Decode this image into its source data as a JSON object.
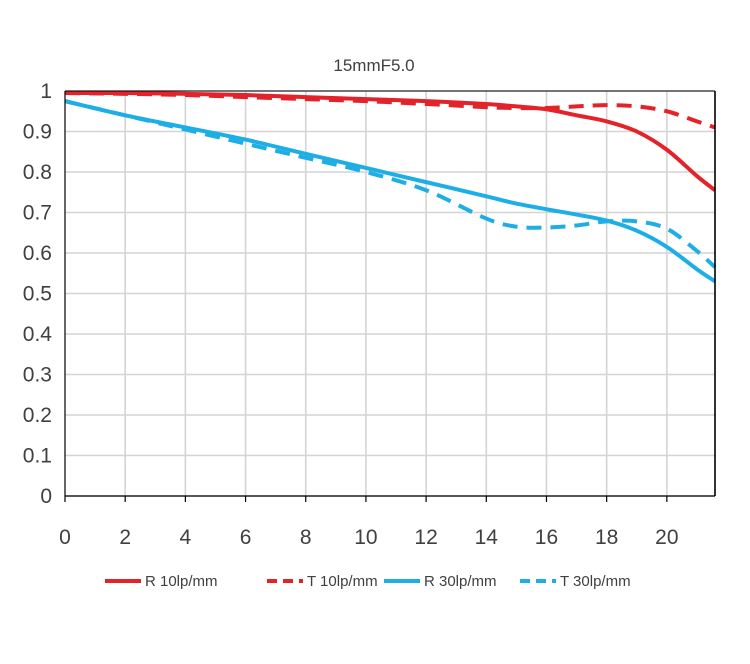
{
  "chart_data": {
    "type": "line",
    "title": "15mmF5.0",
    "xlabel": "",
    "ylabel": "",
    "xlim": [
      0,
      21.6
    ],
    "ylim": [
      0,
      1
    ],
    "x_ticks": [
      "0",
      "2",
      "4",
      "6",
      "8",
      "10",
      "12",
      "14",
      "16",
      "18",
      "20"
    ],
    "y_ticks": [
      "0",
      "0.1",
      "0.2",
      "0.3",
      "0.4",
      "0.5",
      "0.6",
      "0.7",
      "0.8",
      "0.9",
      "1"
    ],
    "grid": true,
    "legend_position": "bottom",
    "colors": {
      "red": "#e4222a",
      "blue": "#1eaee6",
      "grid": "#d4d4d4",
      "axis": "#000000"
    },
    "series": [
      {
        "name": "R 10lp/mm",
        "color": "#e4222a",
        "dash": false,
        "x": [
          0,
          2,
          4,
          6,
          8,
          10,
          12,
          14,
          15,
          16,
          17,
          18,
          19,
          20,
          21,
          21.6
        ],
        "y": [
          0.995,
          0.995,
          0.993,
          0.99,
          0.985,
          0.98,
          0.975,
          0.968,
          0.962,
          0.955,
          0.94,
          0.925,
          0.9,
          0.855,
          0.79,
          0.755
        ]
      },
      {
        "name": "T 10lp/mm",
        "color": "#e4222a",
        "dash": true,
        "x": [
          0,
          2,
          4,
          6,
          8,
          10,
          12,
          14,
          15,
          16,
          17,
          18,
          19,
          20,
          21,
          21.6
        ],
        "y": [
          0.995,
          0.993,
          0.99,
          0.985,
          0.98,
          0.975,
          0.968,
          0.96,
          0.958,
          0.958,
          0.962,
          0.965,
          0.962,
          0.95,
          0.925,
          0.91
        ]
      },
      {
        "name": "R 30lp/mm",
        "color": "#1eaee6",
        "dash": false,
        "x": [
          0,
          2,
          4,
          6,
          8,
          10,
          12,
          14,
          15,
          16,
          17,
          18,
          19,
          20,
          21,
          21.6
        ],
        "y": [
          0.975,
          0.94,
          0.91,
          0.88,
          0.845,
          0.81,
          0.775,
          0.74,
          0.722,
          0.708,
          0.695,
          0.68,
          0.655,
          0.615,
          0.56,
          0.53
        ]
      },
      {
        "name": "T 30lp/mm",
        "color": "#1eaee6",
        "dash": true,
        "x": [
          0,
          2,
          4,
          6,
          8,
          10,
          12,
          14,
          15,
          16,
          17,
          18,
          19,
          20,
          21,
          21.6
        ],
        "y": [
          0.975,
          0.94,
          0.905,
          0.87,
          0.835,
          0.8,
          0.755,
          0.685,
          0.665,
          0.663,
          0.668,
          0.678,
          0.678,
          0.66,
          0.605,
          0.565
        ]
      }
    ]
  }
}
